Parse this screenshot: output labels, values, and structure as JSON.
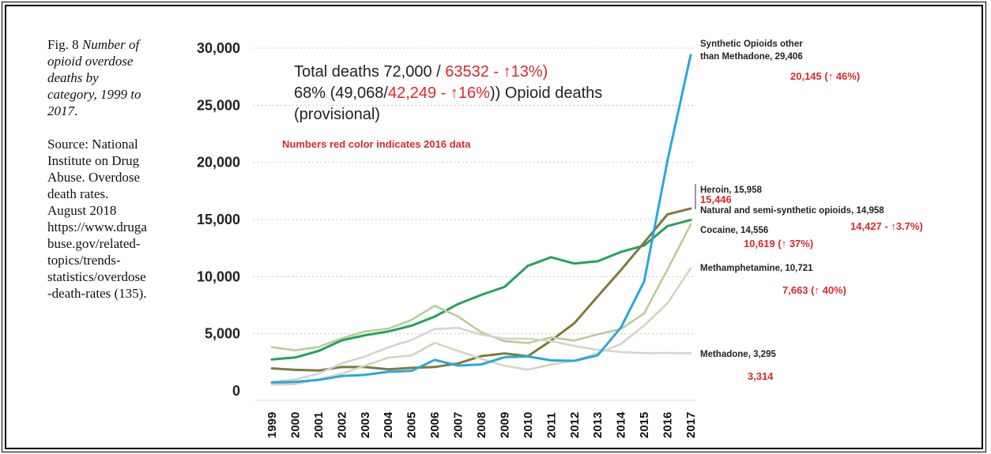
{
  "caption": {
    "fig_label": "Fig. 8",
    "title": "Number of opioid overdose deaths by category, 1999 to 2017",
    "title_suffix": ".",
    "source": "Source: National Institute on Drug Abuse. Overdose death rates. August 2018 https://www.drugabuse.gov/related-topics/trends-statistics/overdose-death-rates (135)."
  },
  "annotation": {
    "line1_black": "Total deaths 72,000 / ",
    "line1_red": "63532 - ↑13%)",
    "line2_black_a": "68% (49,068/",
    "line2_red": "42,249 - ↑16%",
    "line2_black_b": ")) Opioid deaths",
    "line3": "(provisional)",
    "note": "Numbers red color indicates 2016 data"
  },
  "series_labels": {
    "synthetic_line1": "Synthetic Opioids other",
    "synthetic_line2": "than Methadone, 29,406",
    "synthetic_2016": "20,145 (↑ 46%)",
    "heroin": "Heroin, 15,958",
    "heroin_2016": "15,446",
    "natural": "Natural and semi-synthetic opioids, 14,958",
    "natural_2016_red": "14,427",
    "natural_2016_tail": " - ↑3.7%)",
    "cocaine": "Cocaine, 14,556",
    "cocaine_2016": "10,619 (↑ 37%)",
    "meth": "Methamphetamine, 10,721",
    "meth_2016": "7,663 (↑ 40%)",
    "methadone": "Methadone, 3,295",
    "methadone_2016": "3,314"
  },
  "colors": {
    "synthetic": "#2aa7dc",
    "heroin": "#7f7a3d",
    "natural": "#27a05c",
    "cocaine": "#b9cd95",
    "meth": "#cfd8bf",
    "methadone": "#d2d6ce",
    "grid": "#c8c8c8",
    "red": "#e0262a"
  },
  "chart_data": {
    "type": "line",
    "x": [
      "1999",
      "2000",
      "2001",
      "2002",
      "2003",
      "2004",
      "2005",
      "2006",
      "2007",
      "2008",
      "2009",
      "2010",
      "2011",
      "2012",
      "2013",
      "2014",
      "2015",
      "2016",
      "2017"
    ],
    "ylim": [
      0,
      30000
    ],
    "yticks": [
      "0",
      "5,000",
      "10,000",
      "15,000",
      "20,000",
      "25,000",
      "30,000"
    ],
    "ytick_values": [
      0,
      5000,
      10000,
      15000,
      20000,
      25000,
      30000
    ],
    "grid": "horizontal dotted",
    "series": [
      {
        "key": "natural",
        "values": [
          2749,
          2917,
          3484,
          4416,
          4867,
          5195,
          5700,
          6500,
          7600,
          8400,
          9100,
          10943,
          11693,
          11140,
          11346,
          12159,
          12727,
          14427,
          14958
        ]
      },
      {
        "key": "heroin",
        "values": [
          1960,
          1842,
          1779,
          2089,
          2080,
          1878,
          2009,
          2088,
          2399,
          3041,
          3278,
          3036,
          4397,
          5925,
          8257,
          10574,
          12989,
          15446,
          15958
        ]
      },
      {
        "key": "cocaine",
        "values": [
          3822,
          3544,
          3833,
          4599,
          5199,
          5443,
          6208,
          7448,
          6512,
          5129,
          4350,
          4183,
          4681,
          4404,
          4944,
          5415,
          6784,
          10619,
          14556
        ]
      },
      {
        "key": "meth",
        "values": [
          547,
          578,
          1000,
          1500,
          2200,
          2900,
          3100,
          4200,
          3500,
          2800,
          2200,
          1854,
          2300,
          2650,
          3300,
          4100,
          5716,
          7663,
          10721
        ]
      },
      {
        "key": "methadone",
        "values": [
          784,
          988,
          1500,
          2400,
          3000,
          3800,
          4460,
          5406,
          5518,
          4924,
          4566,
          4577,
          4357,
          3932,
          3591,
          3400,
          3301,
          3314,
          3295
        ]
      },
      {
        "key": "synthetic",
        "values": [
          730,
          782,
          957,
          1295,
          1400,
          1664,
          1742,
          2707,
          2213,
          2306,
          2946,
          3007,
          2666,
          2628,
          3105,
          5544,
          9580,
          20145,
          29406
        ]
      }
    ]
  }
}
